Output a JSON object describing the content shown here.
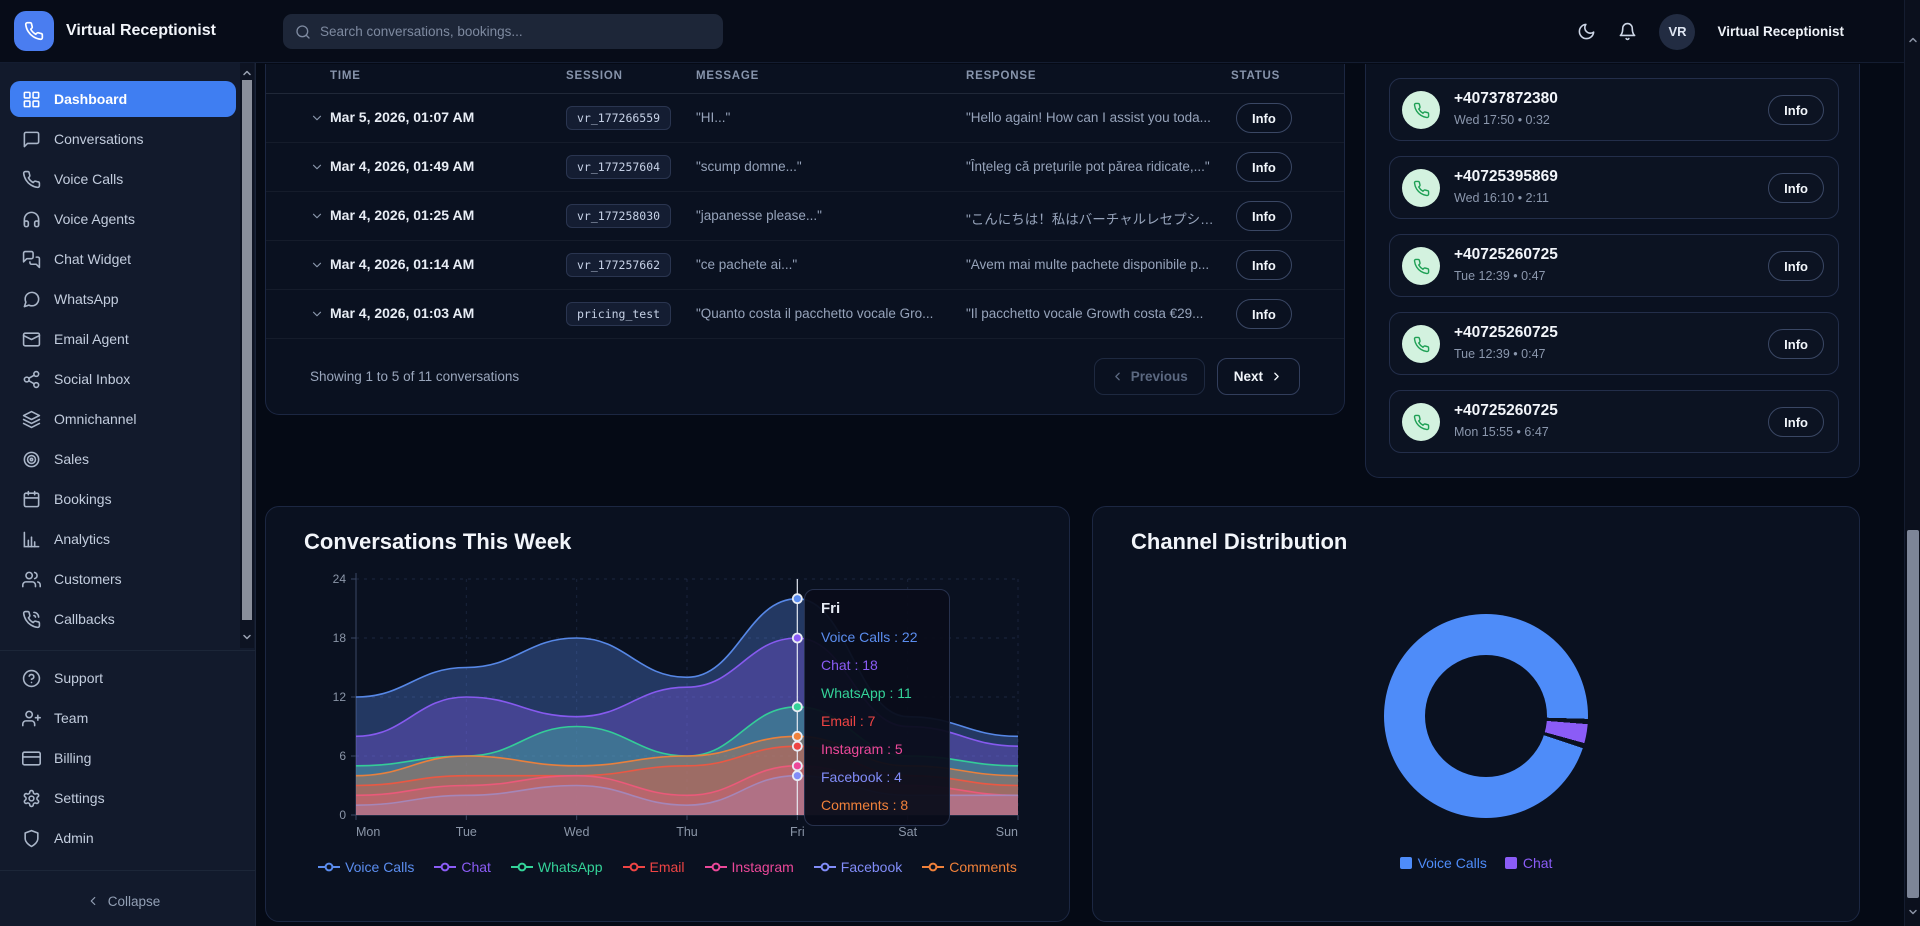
{
  "app": {
    "brand": "Virtual Receptionist"
  },
  "topbar": {
    "search_placeholder": "Search conversations, bookings...",
    "user_initials": "VR",
    "user_name": "Virtual Receptionist"
  },
  "sidebar": {
    "items": [
      {
        "label": "Dashboard",
        "icon": "grid-icon",
        "active": true
      },
      {
        "label": "Conversations",
        "icon": "chat-bubble-icon"
      },
      {
        "label": "Voice Calls",
        "icon": "phone-icon"
      },
      {
        "label": "Voice Agents",
        "icon": "headphones-icon"
      },
      {
        "label": "Chat Widget",
        "icon": "chat-widget-icon"
      },
      {
        "label": "WhatsApp",
        "icon": "message-circle-icon"
      },
      {
        "label": "Email Agent",
        "icon": "mail-icon"
      },
      {
        "label": "Social Inbox",
        "icon": "share-icon"
      },
      {
        "label": "Omnichannel",
        "icon": "layers-icon"
      },
      {
        "label": "Sales",
        "icon": "target-icon"
      },
      {
        "label": "Bookings",
        "icon": "calendar-icon"
      },
      {
        "label": "Analytics",
        "icon": "bar-chart-icon"
      },
      {
        "label": "Customers",
        "icon": "users-icon"
      },
      {
        "label": "Callbacks",
        "icon": "phone-callback-icon"
      }
    ],
    "secondary": [
      {
        "label": "Support",
        "icon": "help-circle-icon"
      },
      {
        "label": "Team",
        "icon": "user-plus-icon"
      },
      {
        "label": "Billing",
        "icon": "credit-card-icon"
      },
      {
        "label": "Settings",
        "icon": "gear-icon"
      },
      {
        "label": "Admin",
        "icon": "shield-icon"
      }
    ],
    "collapse_label": "Collapse"
  },
  "conversations_table": {
    "columns": [
      "TIME",
      "SESSION",
      "MESSAGE",
      "RESPONSE",
      "STATUS"
    ],
    "rows": [
      {
        "time": "Mar 5, 2026, 01:07 AM",
        "session": "vr_177266559",
        "message": "\"HI...\"",
        "response": "\"Hello again! How can I assist you toda...",
        "status": "Info"
      },
      {
        "time": "Mar 4, 2026, 01:49 AM",
        "session": "vr_177257604",
        "message": "\"scump domne...\"",
        "response": "\"Înțeleg că prețurile pot părea ridicate,...\"",
        "status": "Info"
      },
      {
        "time": "Mar 4, 2026, 01:25 AM",
        "session": "vr_177258030",
        "message": "\"japanesse please...\"",
        "response": "\"こんにちは！私はバーチャルレセプショ...",
        "status": "Info"
      },
      {
        "time": "Mar 4, 2026, 01:14 AM",
        "session": "vr_177257662",
        "message": "\"ce pachete ai...\"",
        "response": "\"Avem mai multe pachete disponibile p...",
        "status": "Info"
      },
      {
        "time": "Mar 4, 2026, 01:03 AM",
        "session": "pricing_test",
        "message": "\"Quanto costa il pacchetto vocale Gro...",
        "response": "\"Il pacchetto vocale Growth costa €29...",
        "status": "Info"
      }
    ],
    "footer": {
      "summary": "Showing 1 to 5 of 11 conversations",
      "previous_label": "Previous",
      "next_label": "Next"
    }
  },
  "calls_panel": {
    "items": [
      {
        "number": "+40737872380",
        "meta": "Wed 17:50 • 0:32",
        "action": "Info"
      },
      {
        "number": "+40725395869",
        "meta": "Wed 16:10 • 2:11",
        "action": "Info"
      },
      {
        "number": "+40725260725",
        "meta": "Tue 12:39 • 0:47",
        "action": "Info"
      },
      {
        "number": "+40725260725",
        "meta": "Tue 12:39 • 0:47",
        "action": "Info"
      },
      {
        "number": "+40725260725",
        "meta": "Mon 15:55 • 6:47",
        "action": "Info"
      }
    ]
  },
  "chart_data": [
    {
      "type": "area",
      "title": "Conversations This Week",
      "x": [
        "Mon",
        "Tue",
        "Wed",
        "Thu",
        "Fri",
        "Sat",
        "Sun"
      ],
      "series": [
        {
          "name": "Voice Calls",
          "color": "#5b8def",
          "values": [
            12,
            15,
            18,
            14,
            22,
            10,
            8
          ]
        },
        {
          "name": "Chat",
          "color": "#8b5cf6",
          "values": [
            8,
            12,
            10,
            13,
            18,
            9,
            7
          ]
        },
        {
          "name": "WhatsApp",
          "color": "#34d399",
          "values": [
            5,
            6,
            9,
            6,
            11,
            6,
            5
          ]
        },
        {
          "name": "Email",
          "color": "#ef4444",
          "values": [
            3,
            4,
            4,
            5,
            7,
            4,
            3
          ]
        },
        {
          "name": "Instagram",
          "color": "#ec4899",
          "values": [
            2,
            3,
            4,
            2,
            5,
            3,
            2
          ]
        },
        {
          "name": "Facebook",
          "color": "#818cf8",
          "values": [
            1,
            2,
            3,
            1,
            4,
            2,
            2
          ]
        },
        {
          "name": "Comments",
          "color": "#f0813a",
          "values": [
            4,
            6,
            5,
            6,
            8,
            5,
            4
          ]
        }
      ],
      "ylim": [
        0,
        24
      ],
      "yticks": [
        0,
        6,
        12,
        18,
        24
      ],
      "grid": true,
      "legend_position": "bottom",
      "tooltip": {
        "label": "Fri",
        "entries": [
          {
            "name": "Voice Calls",
            "value": 22
          },
          {
            "name": "Chat",
            "value": 18
          },
          {
            "name": "WhatsApp",
            "value": 11
          },
          {
            "name": "Email",
            "value": 7
          },
          {
            "name": "Instagram",
            "value": 5
          },
          {
            "name": "Facebook",
            "value": 4
          },
          {
            "name": "Comments",
            "value": 8
          }
        ]
      }
    },
    {
      "type": "pie",
      "title": "Channel Distribution",
      "labels": [
        "Voice Calls",
        "Chat"
      ],
      "values": [
        97,
        3
      ],
      "colors": [
        "#4e8cf9",
        "#8b5cf6"
      ],
      "donut": true,
      "legend_position": "bottom"
    }
  ],
  "colors": {
    "accent_blue": "#3f7ef2",
    "page_bg": "#050a15",
    "card_bg": "#0a1120",
    "call_icon_green": "#1fa055"
  }
}
